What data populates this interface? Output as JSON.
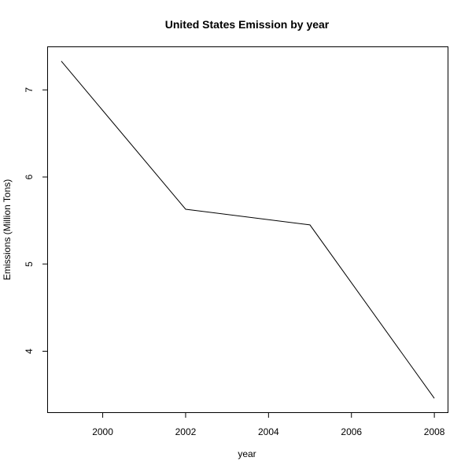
{
  "chart_data": {
    "type": "line",
    "title": "United States Emission by year",
    "xlabel": "year",
    "ylabel": "Emissions (Million Tons)",
    "x": [
      1999,
      2002,
      2005,
      2008
    ],
    "series": [
      {
        "values": [
          7.33,
          5.63,
          5.45,
          3.46
        ]
      }
    ],
    "xlim": [
      1998.68,
      2008.32
    ],
    "ylim": [
      3.3,
      7.49
    ],
    "xticks": [
      2000,
      2002,
      2004,
      2006,
      2008
    ],
    "yticks": [
      4,
      5,
      6,
      7
    ],
    "xtick_labels": [
      "2000",
      "2002",
      "2004",
      "2006",
      "2008"
    ],
    "ytick_labels": [
      "4",
      "5",
      "6",
      "7"
    ],
    "grid": false,
    "line_color": "#000000"
  }
}
